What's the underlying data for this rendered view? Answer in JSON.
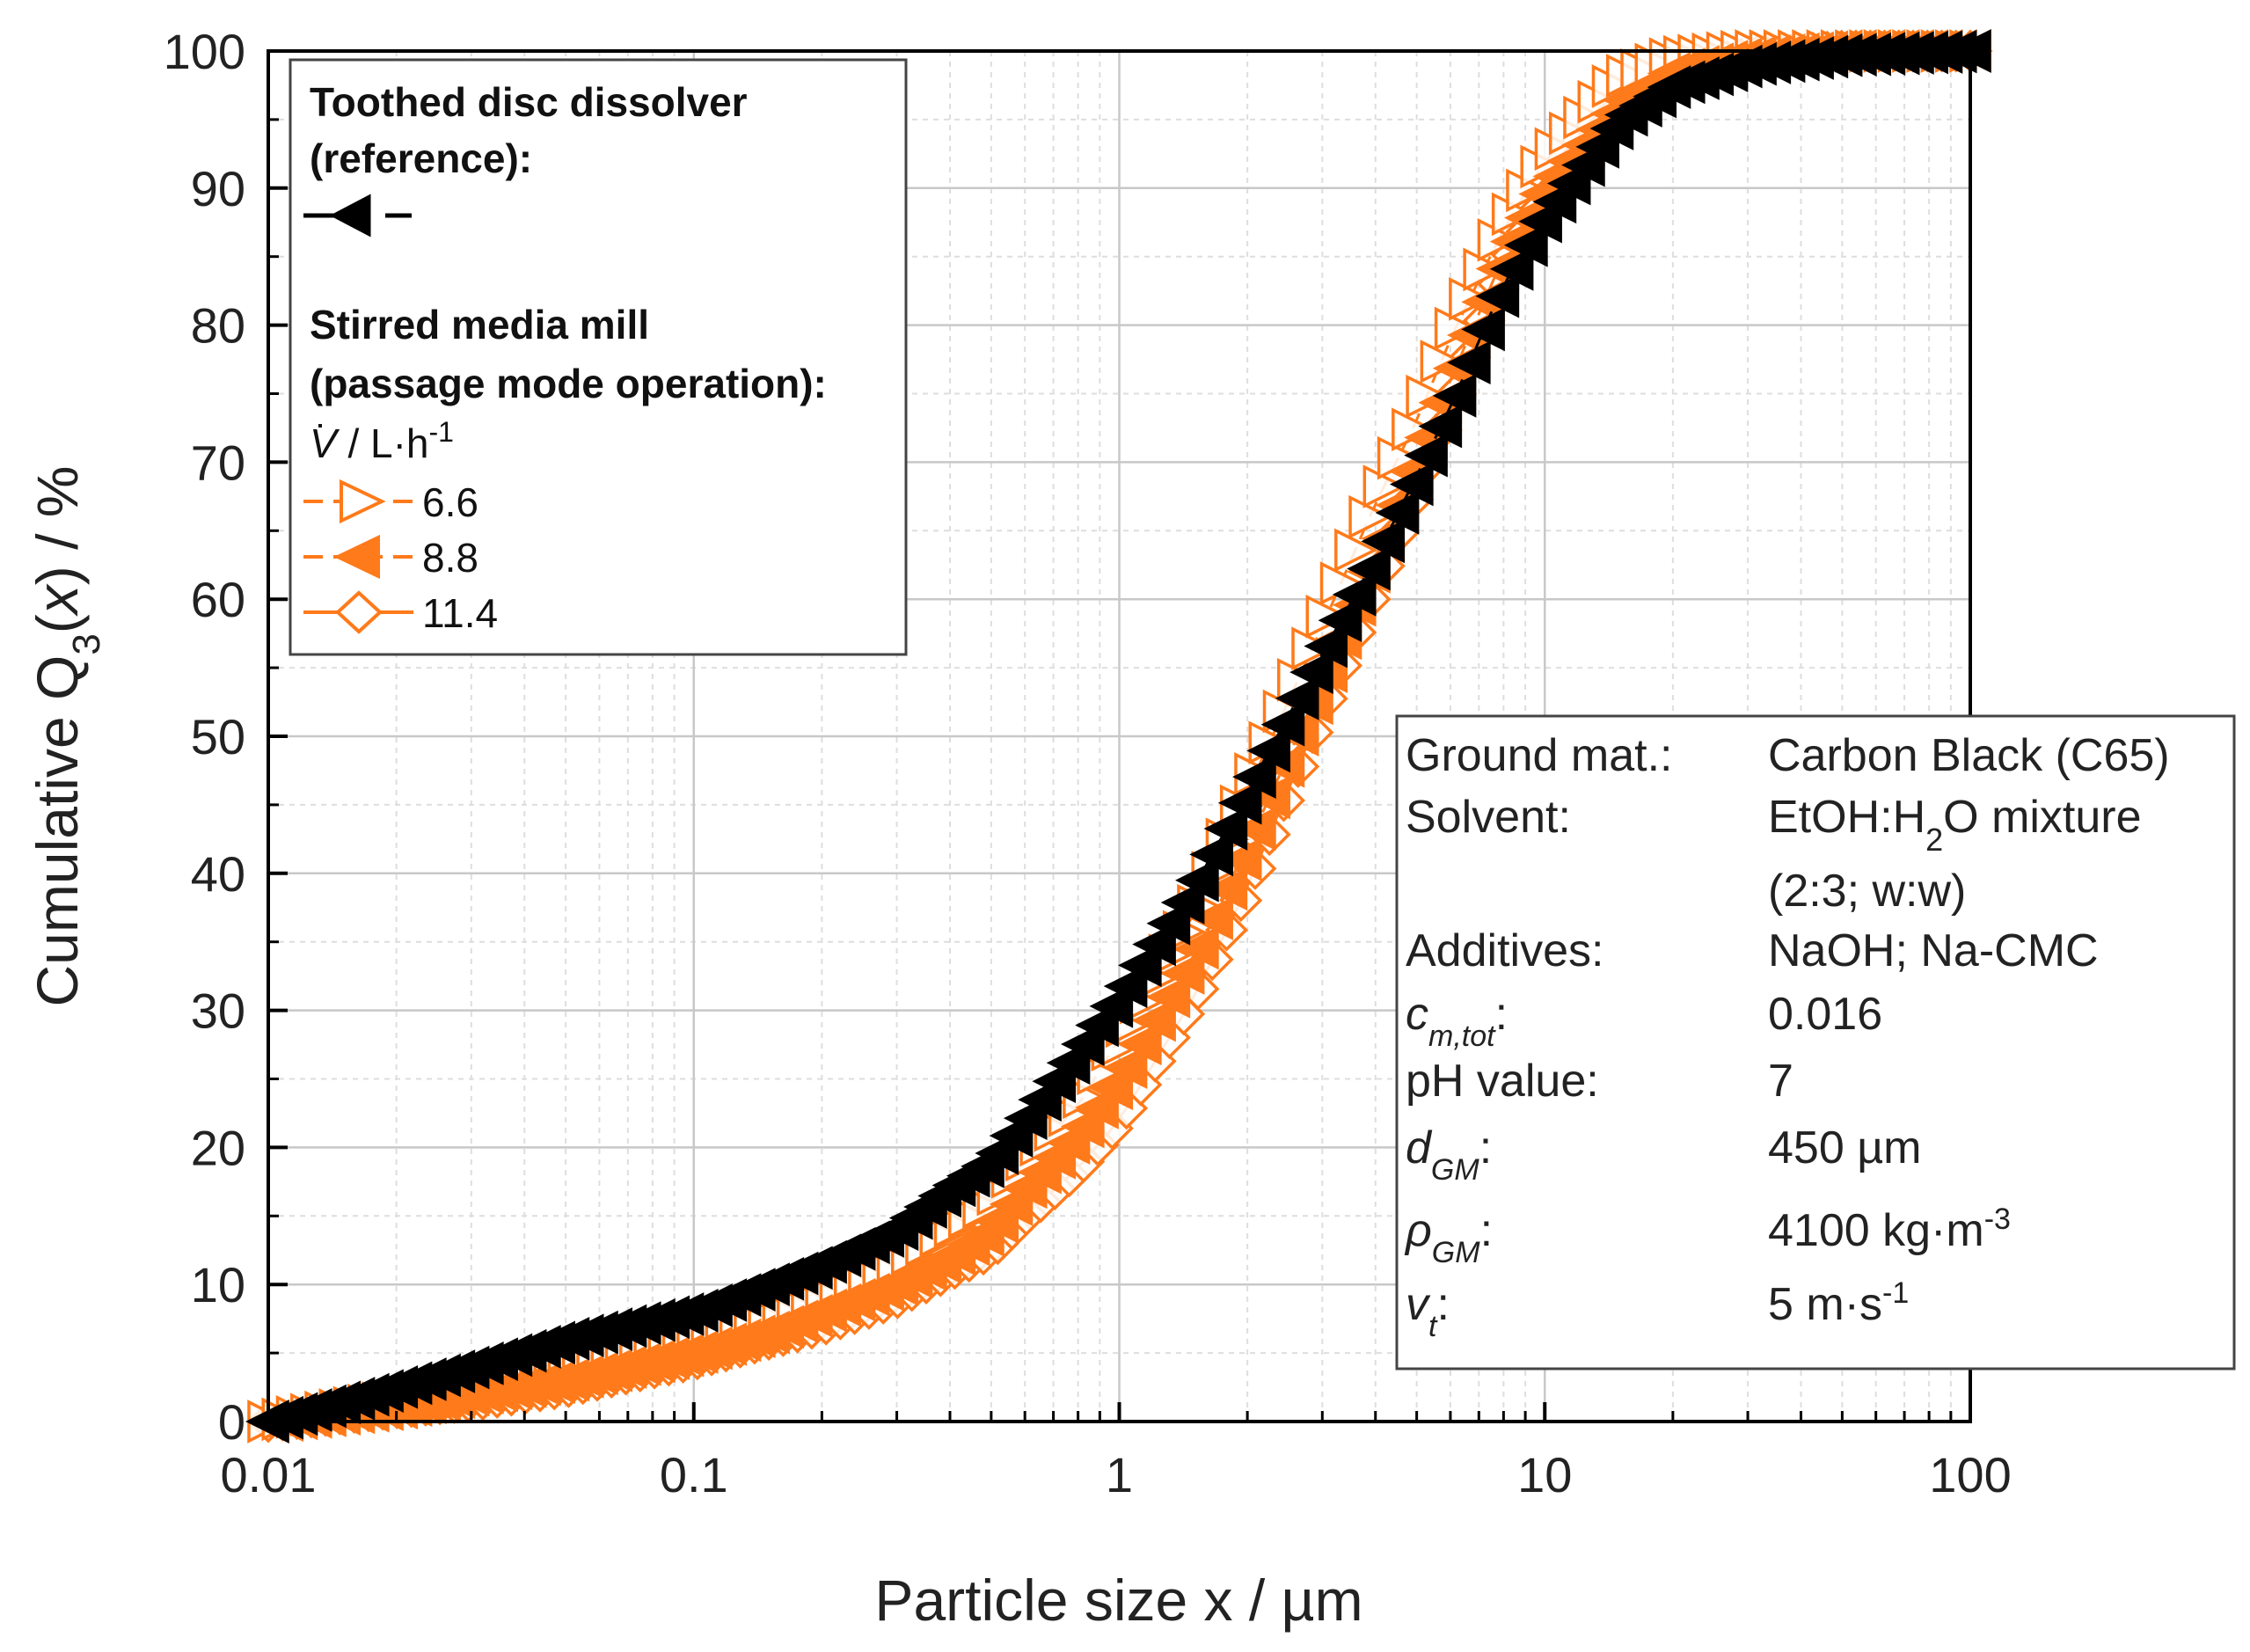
{
  "chart_data": {
    "type": "scatter",
    "xlabel": "Particle size x / µm",
    "ylabel": "Cumulative Q3(x) / %",
    "ylabel_parts": {
      "pre": "Cumulative Q",
      "sub": "3",
      "mid": "(",
      "var": "x",
      "post": ") / %"
    },
    "x_scale": "log",
    "xlim": [
      0.01,
      100
    ],
    "ylim": [
      0,
      100
    ],
    "grid": true,
    "x_ticks": [
      {
        "value": 0.01,
        "label": "0.01"
      },
      {
        "value": 0.1,
        "label": "0.1"
      },
      {
        "value": 1,
        "label": "1"
      },
      {
        "value": 10,
        "label": "10"
      },
      {
        "value": 100,
        "label": "100"
      }
    ],
    "y_ticks": [
      {
        "value": 0,
        "label": "0"
      },
      {
        "value": 10,
        "label": "10"
      },
      {
        "value": 20,
        "label": "20"
      },
      {
        "value": 30,
        "label": "30"
      },
      {
        "value": 40,
        "label": "40"
      },
      {
        "value": 50,
        "label": "50"
      },
      {
        "value": 60,
        "label": "60"
      },
      {
        "value": 70,
        "label": "70"
      },
      {
        "value": 80,
        "label": "80"
      },
      {
        "value": 90,
        "label": "90"
      },
      {
        "value": 100,
        "label": "100"
      }
    ],
    "legend": {
      "placement": "top-left",
      "group1_title_line1": "Toothed disc dissolver",
      "group1_title_line2": "(reference):",
      "group2_title_line1": "Stirred media mill",
      "group2_title_line2": "(passage mode operation):",
      "flow_label_symbol": "V",
      "flow_label_text": " / L·h",
      "flow_label_exp": "-1"
    },
    "series": [
      {
        "name": "",
        "legend_group": "reference",
        "marker": "left-triangle",
        "filled": true,
        "color": "#000000",
        "line_style": "dashed",
        "x": [
          0.01,
          0.02,
          0.03,
          0.05,
          0.07,
          0.1,
          0.15,
          0.2,
          0.3,
          0.4,
          0.5,
          0.6,
          0.8,
          1.0,
          1.5,
          2.0,
          3.0,
          4.0,
          5.0,
          6.0,
          8.0,
          10.0,
          15.0,
          20.0,
          30.0,
          50.0,
          100.0
        ],
        "y": [
          0,
          2.5,
          4,
          6,
          7,
          8,
          10,
          11.5,
          14,
          17,
          19,
          22,
          27,
          31,
          39,
          46,
          56,
          63,
          69,
          74,
          83,
          88,
          95,
          97.5,
          99,
          99.7,
          100
        ]
      },
      {
        "name": "6.6",
        "legend_group": "stirred",
        "marker": "right-triangle",
        "filled": false,
        "color": "#ff7a1a",
        "line_style": "dashed",
        "x": [
          0.01,
          0.02,
          0.03,
          0.05,
          0.07,
          0.1,
          0.15,
          0.2,
          0.3,
          0.4,
          0.5,
          0.6,
          0.8,
          1.0,
          1.5,
          2.0,
          3.0,
          4.0,
          5.0,
          6.0,
          8.0,
          10.0,
          15.0,
          20.0,
          30.0,
          50.0,
          100.0
        ],
        "y": [
          0,
          1.5,
          2.5,
          4,
          5,
          6,
          7.5,
          9,
          11.5,
          14,
          16,
          19,
          23,
          28,
          37,
          46,
          58,
          67,
          73,
          79,
          87,
          92,
          98,
          99.5,
          100,
          100,
          100
        ]
      },
      {
        "name": "8.8",
        "legend_group": "stirred",
        "marker": "left-triangle",
        "filled": true,
        "color": "#ff7a1a",
        "line_style": "dashed",
        "x": [
          0.01,
          0.02,
          0.03,
          0.05,
          0.07,
          0.1,
          0.15,
          0.2,
          0.3,
          0.4,
          0.5,
          0.6,
          0.8,
          1.0,
          1.5,
          2.0,
          3.0,
          4.0,
          5.0,
          6.0,
          8.0,
          10.0,
          15.0,
          20.0,
          30.0,
          50.0,
          100.0
        ],
        "y": [
          0,
          1,
          2,
          3,
          4,
          5,
          6.5,
          8,
          10,
          12,
          14,
          17,
          21,
          25,
          34,
          42,
          54,
          63,
          70,
          76,
          85,
          90,
          96,
          98.5,
          99.5,
          100,
          100
        ]
      },
      {
        "name": "11.4",
        "legend_group": "stirred",
        "marker": "diamond",
        "filled": false,
        "color": "#ff7a1a",
        "line_style": "solid",
        "x": [
          0.01,
          0.02,
          0.03,
          0.05,
          0.07,
          0.1,
          0.15,
          0.2,
          0.3,
          0.4,
          0.5,
          0.6,
          0.8,
          1.0,
          1.5,
          2.0,
          3.0,
          4.0,
          5.0,
          6.0,
          8.0,
          10.0,
          15.0,
          20.0,
          30.0,
          50.0,
          100.0
        ],
        "y": [
          0,
          1,
          1.5,
          2.5,
          3.5,
          4.5,
          6,
          7,
          9,
          11,
          12.5,
          15,
          18.5,
          22,
          31,
          39,
          52,
          61,
          68,
          74,
          84,
          89,
          96,
          98.5,
          99.5,
          100,
          100
        ]
      }
    ],
    "info_box": {
      "placement": "bottom-right",
      "rows": [
        {
          "label": "Ground mat.:",
          "label_sub": "",
          "value": "Carbon Black (C65)",
          "value_sup": ""
        },
        {
          "label": "Solvent:",
          "label_sub": "",
          "value": "EtOH:H",
          "value_sub": "2",
          "value_post": "O mixture",
          "value_line2": "(2:3; w:w)"
        },
        {
          "label": "Additives:",
          "label_sub": "",
          "value": "NaOH; Na-CMC",
          "value_sup": ""
        },
        {
          "label": "c",
          "label_sub": "m,tot",
          "label_colon": ":",
          "value": "0.016",
          "value_sup": ""
        },
        {
          "label": "pH value:",
          "label_sub": "",
          "value": "7",
          "value_sup": ""
        },
        {
          "label": "d",
          "label_sub": "GM",
          "label_colon": ":",
          "value": "450 µm",
          "value_sup": ""
        },
        {
          "label": "ρ",
          "label_sub": "GM",
          "label_colon": ":",
          "value": "4100 kg·m",
          "value_sup": "-3"
        },
        {
          "label": "v",
          "label_sub": "t",
          "label_colon": ":",
          "value": "5 m·s",
          "value_sup": "-1"
        }
      ]
    }
  },
  "colors": {
    "orange": "#ff7a1a",
    "black": "#000000",
    "grid_major": "#c8c8c8",
    "grid_minor": "#dedede"
  }
}
